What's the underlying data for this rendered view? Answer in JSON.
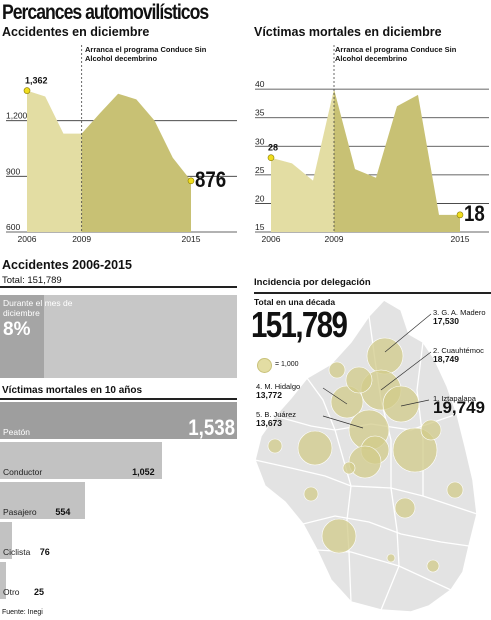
{
  "title": "Percances automovilísticos",
  "source": "Fuente: Inegi",
  "chart_data": [
    {
      "type": "area",
      "id": "accidentes",
      "title": "Accidentes en diciembre",
      "x": [
        2006,
        2007,
        2008,
        2009,
        2010,
        2011,
        2012,
        2013,
        2014,
        2015
      ],
      "values": [
        1362,
        1330,
        1130,
        1130,
        1240,
        1345,
        1315,
        1200,
        1000,
        876
      ],
      "ylim": [
        600,
        1500
      ],
      "y_ticks": [
        "600",
        "900",
        "1,200"
      ],
      "x_ticks": [
        "2006",
        "2009",
        "2015"
      ],
      "labels": {
        "first": "1,362",
        "last": "876"
      },
      "annotation": "Arranca el programa Conduce Sin Alcohol decembrino",
      "annotation_x": 2009,
      "grid": true
    },
    {
      "type": "area",
      "id": "victimas",
      "title": "Víctimas mortales en diciembre",
      "x": [
        2006,
        2007,
        2008,
        2009,
        2010,
        2011,
        2012,
        2013,
        2014,
        2015
      ],
      "values": [
        28,
        27,
        24,
        40,
        26,
        24.5,
        37,
        39,
        18,
        18
      ],
      "ylim": [
        15,
        43
      ],
      "y_ticks": [
        "15",
        "20",
        "25",
        "30",
        "35",
        "40"
      ],
      "x_ticks": [
        "2006",
        "2009",
        "2015"
      ],
      "labels": {
        "first": "28",
        "last": "18"
      },
      "annotation": "Arranca el programa Conduce Sin Alcohol decembrino",
      "annotation_x": 2009,
      "grid": true
    },
    {
      "type": "bar",
      "id": "accidentes-2006-2015",
      "title": "Accidentes 2006-2015",
      "total_label": "Total: 151,789",
      "total": 151789,
      "december_label": "Durante el mes de diciembre",
      "december_percent_label": "8%",
      "december_fraction": 0.08
    },
    {
      "type": "bar",
      "id": "victimas-10-anos",
      "title": "Víctimas mortales en 10 años",
      "categories": [
        "Peatón",
        "Conductor",
        "Pasajero",
        "Ciclista",
        "Otro"
      ],
      "values": [
        1538,
        1052,
        554,
        76,
        25
      ],
      "value_labels": [
        "1,538",
        "1,052",
        "554",
        "76",
        "25"
      ]
    },
    {
      "type": "scatter",
      "id": "incidencia-delegacion",
      "title": "Incidencia por delegación",
      "total_caption": "Total en una década",
      "total_label": "151,789",
      "legend_label": "= 1,000",
      "labeled": [
        {
          "name": "3. G. A. Madero",
          "value_label": "17,530",
          "value": 17530
        },
        {
          "name": "2. Cuauhtémoc",
          "value_label": "18,749",
          "value": 18749
        },
        {
          "name": "4. M. Hidalgo",
          "value_label": "13,772",
          "value": 13772
        },
        {
          "name": "1. Iztapalapa",
          "value_label": "19,749",
          "value": 19749
        },
        {
          "name": "5. B. Juárez",
          "value_label": "13,673",
          "value": 13673
        }
      ]
    }
  ],
  "colors": {
    "light_area": "#e3dda3",
    "dark_area": "#c8c174",
    "dot": "#f0dd1e",
    "bar_gray": "#c2c2c2",
    "bar_dark": "#9e9e9e",
    "map_fill": "#e3e3e3",
    "circle_fill": "#d2cb8a"
  }
}
